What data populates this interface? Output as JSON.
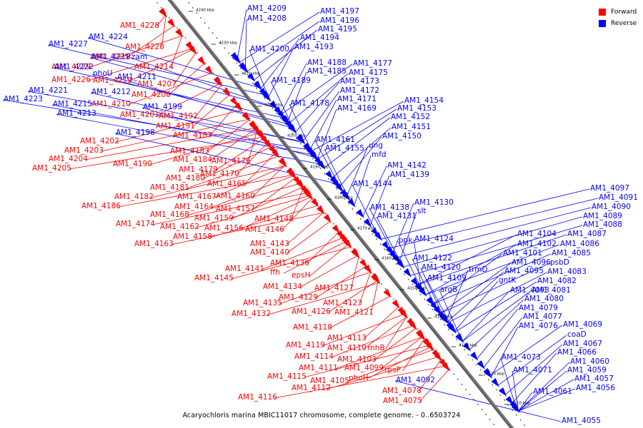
{
  "legend": {
    "forward_label": "Forward",
    "reverse_label": "Reverse",
    "forward_color": "#ff0000",
    "reverse_color": "#0000ff"
  },
  "caption": "Acaryochloris marina MBIC11017 chromosome, complete genome. - 0..6503724",
  "scale_ticks": [
    "4240 kbp",
    "4230 kbp",
    "4220 kbp",
    "4210 kbp",
    "4200 kbp",
    "4190 kbp",
    "4180 kbp",
    "4170 kbp",
    "4160 kbp",
    "4150 kbp",
    "4140 kbp",
    "4130 kbp",
    "4120 kbp",
    "4110 kbp"
  ],
  "forward_genes": [
    "AM1_4228",
    "AM1_4220",
    "AM1_4225",
    "AM1_4229",
    "AM1_4214",
    "AM1_4226",
    "AM1_4219",
    "AM1_4207",
    "AM1_4206",
    "AM1_4210",
    "AM1_4201",
    "AM1_4192",
    "AM1_4191",
    "AM1_4187",
    "AM1_4202",
    "AM1_4203",
    "AM1_4204",
    "AM1_4205",
    "AM1_4183",
    "AM1_4190",
    "AM1_4184",
    "AM1_4176",
    "AM1_4179",
    "AM1_4180",
    "AM1_4170",
    "AM1_4181",
    "AM1_4165",
    "AM1_4182",
    "AM1_4167",
    "AM1_4160",
    "AM1_4186",
    "AM1_4164",
    "AM1_4157",
    "AM1_4168",
    "AM1_4159",
    "AM1_4148",
    "AM1_4174",
    "AM1_4162",
    "AM1_4156",
    "AM1_4146",
    "AM1_4158",
    "AM1_4163",
    "AM1_4143",
    "AM1_4140",
    "AM1_4136",
    "AM1_4141",
    "ffh",
    "AM1_4145",
    "epsH",
    "AM1_4134",
    "AM1_4127",
    "AM1_4135",
    "AM1_4129",
    "AM1_4123",
    "AM1_4132",
    "AM1_4126",
    "AM1_4121",
    "AM1_4118",
    "AM1_4113",
    "AM1_4119",
    "AM1_4110",
    "rnhB",
    "AM1_4114",
    "AM1_4103",
    "AM1_4111",
    "AM1_4099",
    "AM1_4115",
    "AM1_4105",
    "phoH",
    "rpsP",
    "AM1_4112",
    "AM1_4078",
    "AM1_4116",
    "AM1_4075"
  ],
  "reverse_genes": [
    "AM1_4209",
    "AM1_4197",
    "AM1_4208",
    "AM1_4196",
    "AM1_4195",
    "AM1_4194",
    "AM1_4193",
    "AM1_4200",
    "AM1_4224",
    "AM1_4227",
    "AM1_4218",
    "zam",
    "AM1_4222",
    "phoU",
    "AM1_4211",
    "AM1_4221",
    "AM1_4212",
    "AM1_4223",
    "AM1_4215",
    "AM1_4199",
    "AM1_4213",
    "AM1_4198",
    "AM1_4188",
    "AM1_4185",
    "AM1_4177",
    "AM1_4175",
    "AM1_4189",
    "AM1_4173",
    "AM1_4172",
    "AM1_4171",
    "AM1_4178",
    "AM1_4169",
    "AM1_4154",
    "AM1_4153",
    "AM1_4152",
    "AM1_4151",
    "AM1_4150",
    "AM1_4161",
    "AM1_4155",
    "ung",
    "mfd",
    "AM1_4142",
    "AM1_4139",
    "AM1_4144",
    "AM1_4130",
    "AM1_4138",
    "slt",
    "AM1_4131",
    "ppk",
    "AM1_4124",
    "AM1_4122",
    "AM1_4120",
    "AM1_4109",
    "argB",
    "trmD",
    "AM1_4097",
    "AM1_4091",
    "AM1_4090",
    "AM1_4089",
    "AM1_4088",
    "AM1_4104",
    "AM1_4087",
    "AM1_4102",
    "AM1_4086",
    "AM1_4101",
    "AM1_4085",
    "AM1_4096",
    "psbD",
    "AM1_4095",
    "AM1_4083",
    "gntK",
    "AM1_4082",
    "AM1_4093",
    "AM1_4081",
    "AM1_4080",
    "AM1_4079",
    "AM1_4077",
    "AM1_4076",
    "AM1_4069",
    "coaD",
    "AM1_4067",
    "AM1_4066",
    "AM1_4073",
    "AM1_4060",
    "AM1_4071",
    "AM1_4059",
    "AM1_4057",
    "AM1_4092",
    "AM1_4061",
    "AM1_4056",
    "AM1_4055"
  ]
}
